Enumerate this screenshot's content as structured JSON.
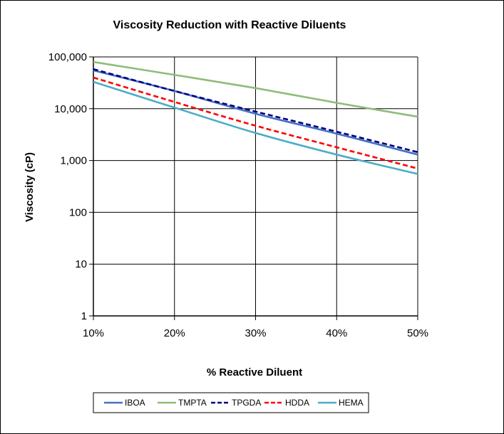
{
  "chart_data": {
    "type": "line",
    "title": "Viscosity Reduction with Reactive Diluents",
    "xlabel": "% Reactive Diluent",
    "ylabel": "Viscosity (cP)",
    "x": [
      0.1,
      0.2,
      0.3,
      0.4,
      0.5
    ],
    "x_tick_labels": [
      "10%",
      "20%",
      "30%",
      "40%",
      "50%"
    ],
    "y_scale": "log",
    "ylim": [
      1,
      100000
    ],
    "y_tick_labels": [
      "1",
      "10",
      "100",
      "1,000",
      "10,000",
      "100,000"
    ],
    "grid": true,
    "legend_position": "bottom",
    "series": [
      {
        "name": "IBOA",
        "color": "#4472C4",
        "dash": "solid",
        "values": [
          55000,
          22000,
          8000,
          3300,
          1300
        ]
      },
      {
        "name": "TMPTA",
        "color": "#8FBC7A",
        "dash": "solid",
        "values": [
          80000,
          45000,
          25000,
          13000,
          7000
        ]
      },
      {
        "name": "TPGDA",
        "color": "#000080",
        "dash": "dashed",
        "values": [
          58000,
          22000,
          8800,
          3600,
          1450
        ]
      },
      {
        "name": "HDDA",
        "color": "#FF0000",
        "dash": "dashed",
        "values": [
          40000,
          13500,
          4700,
          1800,
          700
        ]
      },
      {
        "name": "HEMA",
        "color": "#4BACC6",
        "dash": "solid",
        "values": [
          33000,
          10500,
          3400,
          1300,
          550
        ]
      }
    ]
  }
}
